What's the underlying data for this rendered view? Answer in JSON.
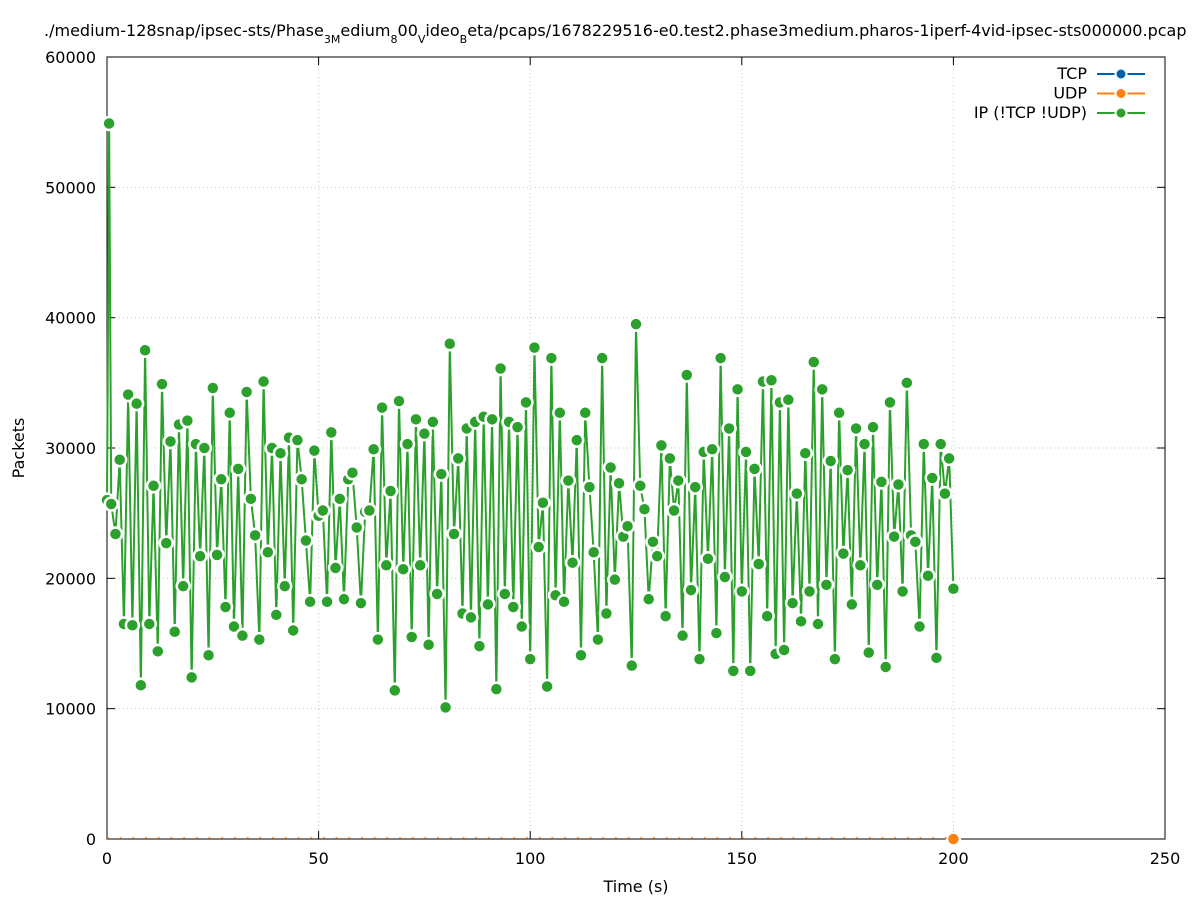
{
  "chart_data": {
    "type": "line",
    "title": "./medium-128snap/ipsec-sts/Phase_3Medium_800_Video_Beta/pcaps/1678229516-e0.test2.phase3medium.pharos-1iperf-4vid-ipsec-sts000000.pcap",
    "title_parts": [
      {
        "text": "./medium-128snap/ipsec-sts/Phase"
      },
      {
        "text": "3M",
        "sub": true
      },
      {
        "text": "edium"
      },
      {
        "text": "8",
        "sub": true
      },
      {
        "text": "00"
      },
      {
        "text": "V",
        "sub": true
      },
      {
        "text": "ideo"
      },
      {
        "text": "B",
        "sub": true
      },
      {
        "text": "eta/pcaps/1678229516-e0.test2.phase3medium.pharos-1iperf-4vid-ipsec-sts000000.pcap"
      }
    ],
    "xlabel": "Time (s)",
    "ylabel": "Packets",
    "xlim": [
      0,
      250
    ],
    "ylim": [
      0,
      60000
    ],
    "xticks": [
      0,
      50,
      100,
      150,
      200,
      250
    ],
    "yticks": [
      0,
      10000,
      20000,
      30000,
      40000,
      50000,
      60000
    ],
    "grid": true,
    "legend_position": "top-right",
    "series": [
      {
        "name": "TCP",
        "color": "#0060ad",
        "x": [],
        "values": []
      },
      {
        "name": "UDP",
        "color": "#ff7f0e",
        "x": [
          200
        ],
        "values": [
          0
        ]
      },
      {
        "name": "IP (!TCP  !UDP)",
        "color": "#2ca02c",
        "x": [
          0,
          0.5,
          1,
          2,
          3,
          4,
          5,
          6,
          7,
          8,
          9,
          10,
          11,
          12,
          13,
          14,
          15,
          16,
          17,
          18,
          19,
          20,
          21,
          22,
          23,
          24,
          25,
          26,
          27,
          28,
          29,
          30,
          31,
          32,
          33,
          34,
          35,
          36,
          37,
          38,
          39,
          40,
          41,
          42,
          43,
          44,
          45,
          46,
          47,
          48,
          49,
          50,
          51,
          52,
          53,
          54,
          55,
          56,
          57,
          58,
          59,
          60,
          61,
          62,
          63,
          64,
          65,
          66,
          67,
          68,
          69,
          70,
          71,
          72,
          73,
          74,
          75,
          76,
          77,
          78,
          79,
          80,
          81,
          82,
          83,
          84,
          85,
          86,
          87,
          88,
          89,
          90,
          91,
          92,
          93,
          94,
          95,
          96,
          97,
          98,
          99,
          100,
          101,
          102,
          103,
          104,
          105,
          106,
          107,
          108,
          109,
          110,
          111,
          112,
          113,
          114,
          115,
          116,
          117,
          118,
          119,
          120,
          121,
          122,
          123,
          124,
          125,
          126,
          127,
          128,
          129,
          130,
          131,
          132,
          133,
          134,
          135,
          136,
          137,
          138,
          139,
          140,
          141,
          142,
          143,
          144,
          145,
          146,
          147,
          148,
          149,
          150,
          151,
          152,
          153,
          154,
          155,
          156,
          157,
          158,
          159,
          160,
          161,
          162,
          163,
          164,
          165,
          166,
          167,
          168,
          169,
          170,
          171,
          172,
          173,
          174,
          175,
          176,
          177,
          178,
          179,
          180,
          181,
          182,
          183,
          184,
          185,
          186,
          187,
          188,
          189,
          190,
          191,
          192,
          193,
          194,
          195,
          196,
          197,
          198,
          199,
          200
        ],
        "values": [
          26000,
          54900,
          25700,
          23400,
          29100,
          16500,
          34100,
          16400,
          33400,
          11800,
          37500,
          16500,
          27100,
          14400,
          34900,
          22700,
          30500,
          15900,
          31800,
          19400,
          32100,
          12400,
          30300,
          21700,
          30000,
          14100,
          34600,
          21800,
          27600,
          17800,
          32700,
          16300,
          28400,
          15600,
          34300,
          26100,
          23300,
          15300,
          35100,
          22000,
          30000,
          17200,
          29600,
          19400,
          30800,
          16000,
          30600,
          27600,
          22900,
          18200,
          29800,
          24800,
          25200,
          18200,
          31200,
          20800,
          26100,
          18400,
          27600,
          28100,
          23900,
          18100,
          25100,
          25200,
          29900,
          15300,
          33100,
          21000,
          26700,
          11400,
          33600,
          20700,
          30300,
          15500,
          32200,
          21000,
          31100,
          14900,
          32000,
          18800,
          28000,
          10100,
          38000,
          23400,
          29200,
          17300,
          31500,
          17000,
          32000,
          14800,
          32400,
          18000,
          32200,
          11500,
          36100,
          18800,
          32000,
          17800,
          31600,
          16300,
          33500,
          13800,
          37700,
          22400,
          25800,
          11700,
          36900,
          18700,
          32700,
          18200,
          27500,
          21200,
          30600,
          14100,
          32700,
          27000,
          22000,
          15300,
          36900,
          17300,
          28500,
          19900,
          27300,
          23200,
          24000,
          13300,
          39500,
          27100,
          25300,
          18400,
          22800,
          21700,
          30200,
          17100,
          29200,
          25200,
          27500,
          15600,
          35600,
          19100,
          27000,
          13800,
          29700,
          21500,
          29900,
          15800,
          36900,
          20100,
          31500,
          12900,
          34500,
          19000,
          29700,
          12900,
          28400,
          21100,
          35100,
          17100,
          35200,
          14200,
          33500,
          14500,
          33700,
          18100,
          26500,
          16700,
          29600,
          19000,
          36600,
          16500,
          34500,
          19500,
          29000,
          13800,
          32700,
          21900,
          28300,
          18000,
          31500,
          21000,
          30300,
          14300,
          31600,
          19500,
          27400,
          13200,
          33500,
          23200,
          27200,
          19000,
          35000,
          23300,
          22800,
          16300,
          30300,
          20200,
          27700,
          13900,
          30300,
          26500,
          29200,
          19200
        ]
      }
    ]
  }
}
